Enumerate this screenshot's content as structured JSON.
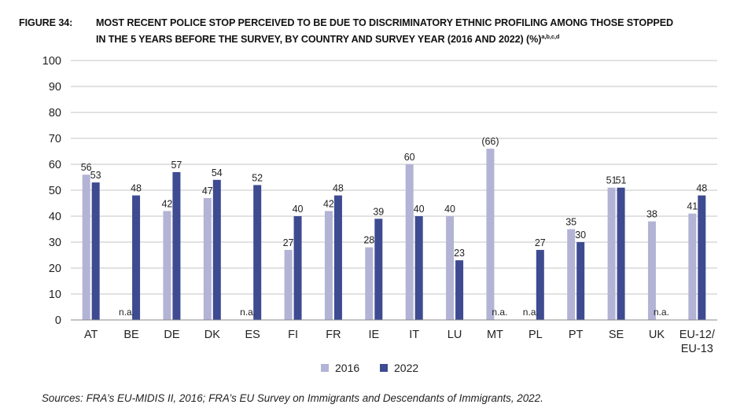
{
  "figure": {
    "label": "FIGURE 34:",
    "title_line1": "MOST RECENT POLICE STOP PERCEIVED TO BE DUE TO DISCRIMINATORY ETHNIC PROFILING AMONG THOSE STOPPED",
    "title_line2": "IN THE 5 YEARS BEFORE THE SURVEY, BY COUNTRY AND SURVEY YEAR (2016 AND 2022) (%)",
    "title_footnotes": "a,b,c,d"
  },
  "chart_data": {
    "type": "bar",
    "title": "MOST RECENT POLICE STOP PERCEIVED TO BE DUE TO DISCRIMINATORY ETHNIC PROFILING AMONG THOSE STOPPED IN THE 5 YEARS BEFORE THE SURVEY, BY COUNTRY AND SURVEY YEAR (2016 AND 2022) (%)",
    "xlabel": "",
    "ylabel": "",
    "ylim": [
      0,
      100
    ],
    "yticks": [
      0,
      10,
      20,
      30,
      40,
      50,
      60,
      70,
      80,
      90,
      100
    ],
    "grid": true,
    "legend_position": "bottom-center",
    "categories": [
      "AT",
      "BE",
      "DE",
      "DK",
      "ES",
      "FI",
      "FR",
      "IE",
      "IT",
      "LU",
      "MT",
      "PL",
      "PT",
      "SE",
      "UK",
      "EU-12/ EU-13"
    ],
    "series": [
      {
        "name": "2016",
        "color": "#b3b3d6",
        "values": [
          56,
          null,
          42,
          47,
          null,
          27,
          42,
          28,
          60,
          40,
          66,
          null,
          35,
          51,
          38,
          41
        ],
        "labels": [
          "56",
          "n.a.",
          "42",
          "47",
          "n.a.",
          "27",
          "42",
          "28",
          "60",
          "40",
          "(66)",
          "n.a.",
          "35",
          "51",
          "38",
          "41"
        ]
      },
      {
        "name": "2022",
        "color": "#3e4b91",
        "values": [
          53,
          48,
          57,
          54,
          52,
          40,
          48,
          39,
          40,
          23,
          null,
          27,
          30,
          51,
          null,
          48
        ],
        "labels": [
          "53",
          "48",
          "57",
          "54",
          "52",
          "40",
          "48",
          "39",
          "40",
          "23",
          "n.a.",
          "27",
          "30",
          "51",
          "n.a.",
          "48"
        ]
      }
    ]
  },
  "legend": {
    "items": [
      {
        "label": "2016",
        "color": "#b3b3d6"
      },
      {
        "label": "2022",
        "color": "#3e4b91"
      }
    ]
  },
  "source": {
    "text": "Sources: FRA’s EU-MIDIS II, 2016; FRA’s EU Survey on Immigrants and Descendants of Immigrants, 2022."
  }
}
